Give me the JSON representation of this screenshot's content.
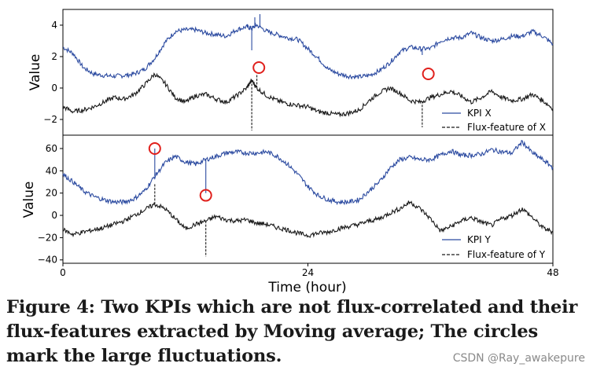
{
  "chart_data": [
    {
      "type": "line",
      "ylabel": "Value",
      "xlim": [
        0,
        48
      ],
      "ylim": [
        -3,
        5
      ],
      "yticks": [
        -2,
        0,
        2,
        4
      ],
      "grid": false,
      "legend_position": "bottom-right",
      "series": [
        {
          "name": "KPI X",
          "color": "#2b4aa0",
          "style": "solid",
          "points": [
            [
              0,
              2.6
            ],
            [
              1,
              2.2
            ],
            [
              2,
              1.3
            ],
            [
              3,
              0.9
            ],
            [
              4,
              0.8
            ],
            [
              5,
              0.75
            ],
            [
              6,
              0.8
            ],
            [
              7,
              0.9
            ],
            [
              8,
              1.2
            ],
            [
              9,
              1.9
            ],
            [
              10,
              2.9
            ],
            [
              11,
              3.6
            ],
            [
              12,
              3.7
            ],
            [
              13,
              3.7
            ],
            [
              14,
              3.5
            ],
            [
              15,
              3.4
            ],
            [
              16,
              3.3
            ],
            [
              17,
              3.7
            ],
            [
              18,
              3.9
            ],
            [
              18.5,
              3.8
            ],
            [
              19,
              4.0
            ],
            [
              20,
              3.6
            ],
            [
              21,
              3.4
            ],
            [
              22,
              3.2
            ],
            [
              23,
              3.1
            ],
            [
              24,
              2.5
            ],
            [
              25,
              1.9
            ],
            [
              26,
              1.2
            ],
            [
              27,
              0.9
            ],
            [
              28,
              0.75
            ],
            [
              29,
              0.7
            ],
            [
              30,
              0.8
            ],
            [
              31,
              1.1
            ],
            [
              32,
              1.6
            ],
            [
              33,
              2.3
            ],
            [
              34,
              2.6
            ],
            [
              35,
              2.5
            ],
            [
              36,
              2.5
            ],
            [
              37,
              3.0
            ],
            [
              38,
              3.2
            ],
            [
              39,
              3.2
            ],
            [
              40,
              3.5
            ],
            [
              41,
              3.2
            ],
            [
              42,
              3.0
            ],
            [
              43,
              3.1
            ],
            [
              44,
              3.3
            ],
            [
              45,
              3.3
            ],
            [
              46,
              3.6
            ],
            [
              47,
              3.3
            ],
            [
              48,
              2.8
            ]
          ],
          "spikes": [
            [
              18.5,
              2.4
            ],
            [
              18.8,
              4.5
            ],
            [
              19.3,
              4.7
            ],
            [
              35.2,
              2.1
            ]
          ]
        },
        {
          "name": "Flux-feature of X",
          "color": "#1a1a1a",
          "style": "dashed",
          "points": [
            [
              0,
              -1.2
            ],
            [
              1,
              -1.5
            ],
            [
              2,
              -1.4
            ],
            [
              3,
              -1.2
            ],
            [
              4,
              -0.9
            ],
            [
              5,
              -0.6
            ],
            [
              6,
              -0.7
            ],
            [
              7,
              -0.4
            ],
            [
              8,
              0.2
            ],
            [
              9,
              0.9
            ],
            [
              10,
              0.3
            ],
            [
              11,
              -0.6
            ],
            [
              12,
              -0.9
            ],
            [
              13,
              -0.5
            ],
            [
              14,
              -0.4
            ],
            [
              15,
              -0.7
            ],
            [
              16,
              -0.9
            ],
            [
              17,
              -0.5
            ],
            [
              18,
              0
            ],
            [
              18.5,
              0.5
            ],
            [
              19,
              0
            ],
            [
              20,
              -0.5
            ],
            [
              21,
              -0.8
            ],
            [
              22,
              -1.0
            ],
            [
              23,
              -1.1
            ],
            [
              24,
              -1.2
            ],
            [
              25,
              -1.5
            ],
            [
              26,
              -1.6
            ],
            [
              27,
              -1.7
            ],
            [
              28,
              -1.6
            ],
            [
              29,
              -1.4
            ],
            [
              30,
              -0.8
            ],
            [
              31,
              -0.3
            ],
            [
              32,
              0
            ],
            [
              33,
              -0.3
            ],
            [
              34,
              -0.8
            ],
            [
              35,
              -0.9
            ],
            [
              36,
              -0.6
            ],
            [
              37,
              -0.4
            ],
            [
              38,
              -0.2
            ],
            [
              39,
              -0.5
            ],
            [
              40,
              -0.9
            ],
            [
              41,
              -0.6
            ],
            [
              42,
              -0.2
            ],
            [
              43,
              -0.6
            ],
            [
              44,
              -0.8
            ],
            [
              45,
              -0.7
            ],
            [
              46,
              -0.4
            ],
            [
              47,
              -0.8
            ],
            [
              48,
              -1.3
            ]
          ],
          "spikes": [
            [
              18.5,
              -2.7
            ],
            [
              19.0,
              0.9
            ],
            [
              35.2,
              -2.5
            ]
          ]
        }
      ],
      "markers": [
        [
          19.2,
          1.3
        ],
        [
          35.8,
          0.9
        ]
      ]
    },
    {
      "type": "line",
      "ylabel": "Value",
      "xlabel": "Time (hour)",
      "xlim": [
        0,
        48
      ],
      "ylim": [
        -43,
        72
      ],
      "yticks": [
        -40,
        -20,
        0,
        20,
        40,
        60
      ],
      "xticks": [
        0,
        24,
        48
      ],
      "grid": false,
      "legend_position": "bottom-right",
      "series": [
        {
          "name": "KPI Y",
          "color": "#2b4aa0",
          "style": "solid",
          "points": [
            [
              0,
              37
            ],
            [
              1,
              30
            ],
            [
              2,
              22
            ],
            [
              3,
              17
            ],
            [
              4,
              14
            ],
            [
              5,
              12
            ],
            [
              6,
              12
            ],
            [
              7,
              15
            ],
            [
              8,
              22
            ],
            [
              9,
              35
            ],
            [
              10,
              47
            ],
            [
              11,
              53
            ],
            [
              12,
              48
            ],
            [
              13,
              46
            ],
            [
              14,
              50
            ],
            [
              15,
              53
            ],
            [
              16,
              56
            ],
            [
              17,
              57
            ],
            [
              18,
              56
            ],
            [
              19,
              56
            ],
            [
              20,
              57
            ],
            [
              21,
              53
            ],
            [
              22,
              46
            ],
            [
              23,
              37
            ],
            [
              24,
              26
            ],
            [
              25,
              18
            ],
            [
              26,
              14
            ],
            [
              27,
              12
            ],
            [
              28,
              12
            ],
            [
              29,
              14
            ],
            [
              30,
              22
            ],
            [
              31,
              30
            ],
            [
              32,
              42
            ],
            [
              33,
              50
            ],
            [
              34,
              52
            ],
            [
              35,
              50
            ],
            [
              36,
              50
            ],
            [
              37,
              54
            ],
            [
              38,
              58
            ],
            [
              39,
              54
            ],
            [
              40,
              54
            ],
            [
              41,
              55
            ],
            [
              42,
              59
            ],
            [
              43,
              57
            ],
            [
              44,
              56
            ],
            [
              45,
              66
            ],
            [
              46,
              56
            ],
            [
              47,
              50
            ],
            [
              48,
              43
            ]
          ],
          "spikes": [
            [
              9.0,
              60
            ],
            [
              14.0,
              20
            ]
          ]
        },
        {
          "name": "Flux-feature of Y",
          "color": "#1a1a1a",
          "style": "dashed",
          "points": [
            [
              0,
              -13
            ],
            [
              1,
              -17
            ],
            [
              2,
              -15
            ],
            [
              3,
              -13
            ],
            [
              4,
              -11
            ],
            [
              5,
              -8
            ],
            [
              6,
              -5
            ],
            [
              7,
              0
            ],
            [
              8,
              5
            ],
            [
              9,
              10
            ],
            [
              10,
              6
            ],
            [
              11,
              -3
            ],
            [
              12,
              -12
            ],
            [
              13,
              -8
            ],
            [
              14,
              -5
            ],
            [
              15,
              -1
            ],
            [
              16,
              -4
            ],
            [
              17,
              -5
            ],
            [
              18,
              -4
            ],
            [
              19,
              -7
            ],
            [
              20,
              -8
            ],
            [
              21,
              -11
            ],
            [
              22,
              -13
            ],
            [
              23,
              -16
            ],
            [
              24,
              -18
            ],
            [
              25,
              -16
            ],
            [
              26,
              -15
            ],
            [
              27,
              -12
            ],
            [
              28,
              -10
            ],
            [
              29,
              -8
            ],
            [
              30,
              -5
            ],
            [
              31,
              -3
            ],
            [
              32,
              2
            ],
            [
              33,
              6
            ],
            [
              34,
              12
            ],
            [
              35,
              6
            ],
            [
              36,
              -3
            ],
            [
              37,
              -14
            ],
            [
              38,
              -10
            ],
            [
              39,
              -5
            ],
            [
              40,
              -2
            ],
            [
              41,
              -6
            ],
            [
              42,
              -9
            ],
            [
              43,
              -3
            ],
            [
              44,
              0
            ],
            [
              45,
              6
            ],
            [
              46,
              -2
            ],
            [
              47,
              -11
            ],
            [
              48,
              -15
            ]
          ],
          "spikes": [
            [
              9.0,
              28
            ],
            [
              14.0,
              -37
            ]
          ]
        }
      ],
      "markers": [
        [
          9.0,
          60
        ],
        [
          14.0,
          18
        ]
      ]
    }
  ],
  "axes": {
    "xticks": [
      "0",
      "24",
      "48"
    ],
    "xlabel": "Time (hour)"
  },
  "caption": "Figure 4: Two KPIs which are not flux-correlated and their flux-features extracted by Moving average; The circles mark the large fluctuations.",
  "watermark": "CSDN @Ray_awakepure"
}
